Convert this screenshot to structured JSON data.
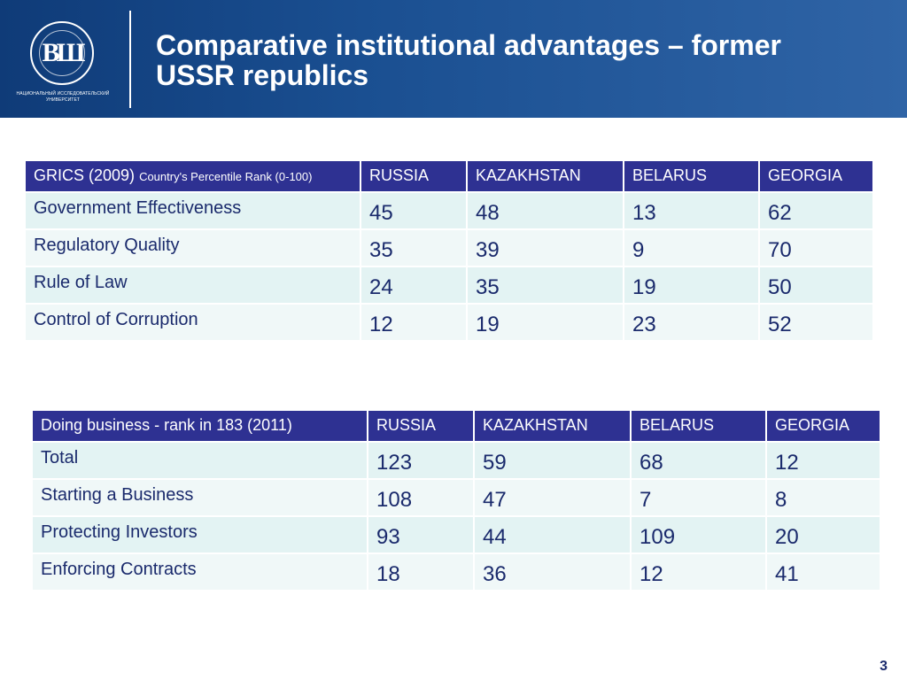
{
  "header": {
    "title_line1": "Comparative institutional advantages – former",
    "title_line2": "USSR republics",
    "logo": {
      "mark": "ВШ",
      "ring_text": "ВЫСШАЯ ШКОЛА ЭКОНОМИКИ",
      "caption_line1": "НАЦИОНАЛЬНЫЙ ИССЛЕДОВАТЕЛЬСКИЙ",
      "caption_line2": "УНИВЕРСИТЕТ"
    }
  },
  "grics_table": {
    "header_main": "GRICS (2009)",
    "header_sub": "Country's Percentile Rank (0-100)",
    "columns": [
      "RUSSIA",
      "KAZAKHSTAN",
      "BELARUS",
      "GEORGIA"
    ],
    "rows": [
      {
        "label": "Government Effectiveness",
        "values": [
          "45",
          "48",
          "13",
          "62"
        ]
      },
      {
        "label": "Regulatory Quality",
        "values": [
          "35",
          "39",
          "9",
          "70"
        ]
      },
      {
        "label": "Rule of Law",
        "values": [
          "24",
          "35",
          "19",
          "50"
        ]
      },
      {
        "label": "Control of Corruption",
        "values": [
          "12",
          "19",
          "23",
          "52"
        ]
      }
    ]
  },
  "doing_business_table": {
    "header_main": "Doing business -  rank in 183 (2011)",
    "columns": [
      "RUSSIA",
      "KAZAKHSTAN",
      "BELARUS",
      "GEORGIA"
    ],
    "rows": [
      {
        "label": "Total",
        "values": [
          "123",
          "59",
          "68",
          "12"
        ]
      },
      {
        "label": "Starting a Business",
        "values": [
          "108",
          "47",
          "7",
          "8"
        ]
      },
      {
        "label": "Protecting Investors",
        "values": [
          "93",
          "44",
          "109",
          "20"
        ]
      },
      {
        "label": "Enforcing Contracts",
        "values": [
          "18",
          "36",
          "12",
          "41"
        ]
      }
    ]
  },
  "page_number": "3",
  "colors": {
    "header_bg": "#1a4f91",
    "table_header_bg": "#2e3192",
    "row_odd_bg": "#e3f3f3",
    "row_even_bg": "#f0f8f8",
    "body_text": "#1a2a6c"
  }
}
